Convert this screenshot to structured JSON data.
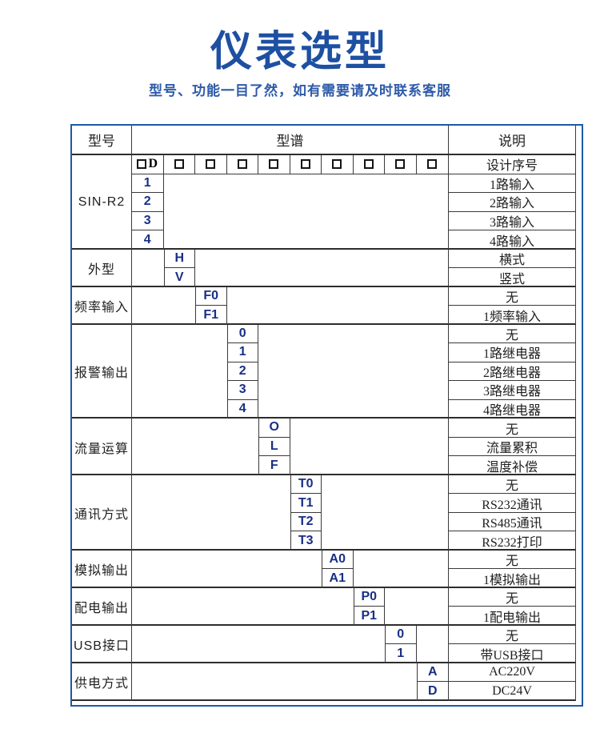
{
  "page": {
    "title": "仪表选型",
    "subtitle": "型号、功能一目了然，如有需要请及时联系客服"
  },
  "colors": {
    "title_blue": "#1e50a2",
    "subtitle_blue": "#2d5aa9",
    "table_frame_blue": "#1c5aa6",
    "grid_line": "#3a3a3a",
    "code_blue": "#182f85",
    "text_dark": "#1f1f1f"
  },
  "table": {
    "headers": {
      "model": "型号",
      "spectrum": "型谱",
      "description": "说明"
    },
    "blocks": [
      {
        "category": "SIN-R2",
        "column": 0,
        "design_row": {
          "code_suffix": "D",
          "extra_squares": 9,
          "desc": "设计序号"
        },
        "options": [
          {
            "code": "1",
            "desc": "1路输入"
          },
          {
            "code": "2",
            "desc": "2路输入"
          },
          {
            "code": "3",
            "desc": "3路输入"
          },
          {
            "code": "4",
            "desc": "4路输入"
          }
        ]
      },
      {
        "category": "外型",
        "column": 1,
        "options": [
          {
            "code": "H",
            "desc": "横式"
          },
          {
            "code": "V",
            "desc": "竖式"
          }
        ]
      },
      {
        "category": "频率输入",
        "column": 2,
        "options": [
          {
            "code": "F0",
            "desc": "无"
          },
          {
            "code": "F1",
            "desc": "1频率输入"
          }
        ]
      },
      {
        "category": "报警输出",
        "column": 3,
        "options": [
          {
            "code": "0",
            "desc": "无"
          },
          {
            "code": "1",
            "desc": "1路继电器"
          },
          {
            "code": "2",
            "desc": "2路继电器"
          },
          {
            "code": "3",
            "desc": "3路继电器"
          },
          {
            "code": "4",
            "desc": "4路继电器"
          }
        ]
      },
      {
        "category": "流量运算",
        "column": 4,
        "options": [
          {
            "code": "O",
            "desc": "无"
          },
          {
            "code": "L",
            "desc": "流量累积"
          },
          {
            "code": "F",
            "desc": "温度补偿"
          }
        ]
      },
      {
        "category": "通讯方式",
        "column": 5,
        "options": [
          {
            "code": "T0",
            "desc": "无"
          },
          {
            "code": "T1",
            "desc": "RS232通讯"
          },
          {
            "code": "T2",
            "desc": "RS485通讯"
          },
          {
            "code": "T3",
            "desc": "RS232打印"
          }
        ]
      },
      {
        "category": "模拟输出",
        "column": 6,
        "options": [
          {
            "code": "A0",
            "desc": "无"
          },
          {
            "code": "A1",
            "desc": "1模拟输出"
          }
        ]
      },
      {
        "category": "配电输出",
        "column": 7,
        "options": [
          {
            "code": "P0",
            "desc": "无"
          },
          {
            "code": "P1",
            "desc": "1配电输出"
          }
        ]
      },
      {
        "category": "USB接口",
        "column": 8,
        "options": [
          {
            "code": "0",
            "desc": "无"
          },
          {
            "code": "1",
            "desc": "带USB接口"
          }
        ]
      },
      {
        "category": "供电方式",
        "column": 9,
        "options": [
          {
            "code": "A",
            "desc": "AC220V"
          },
          {
            "code": "D",
            "desc": "DC24V"
          }
        ]
      }
    ]
  }
}
